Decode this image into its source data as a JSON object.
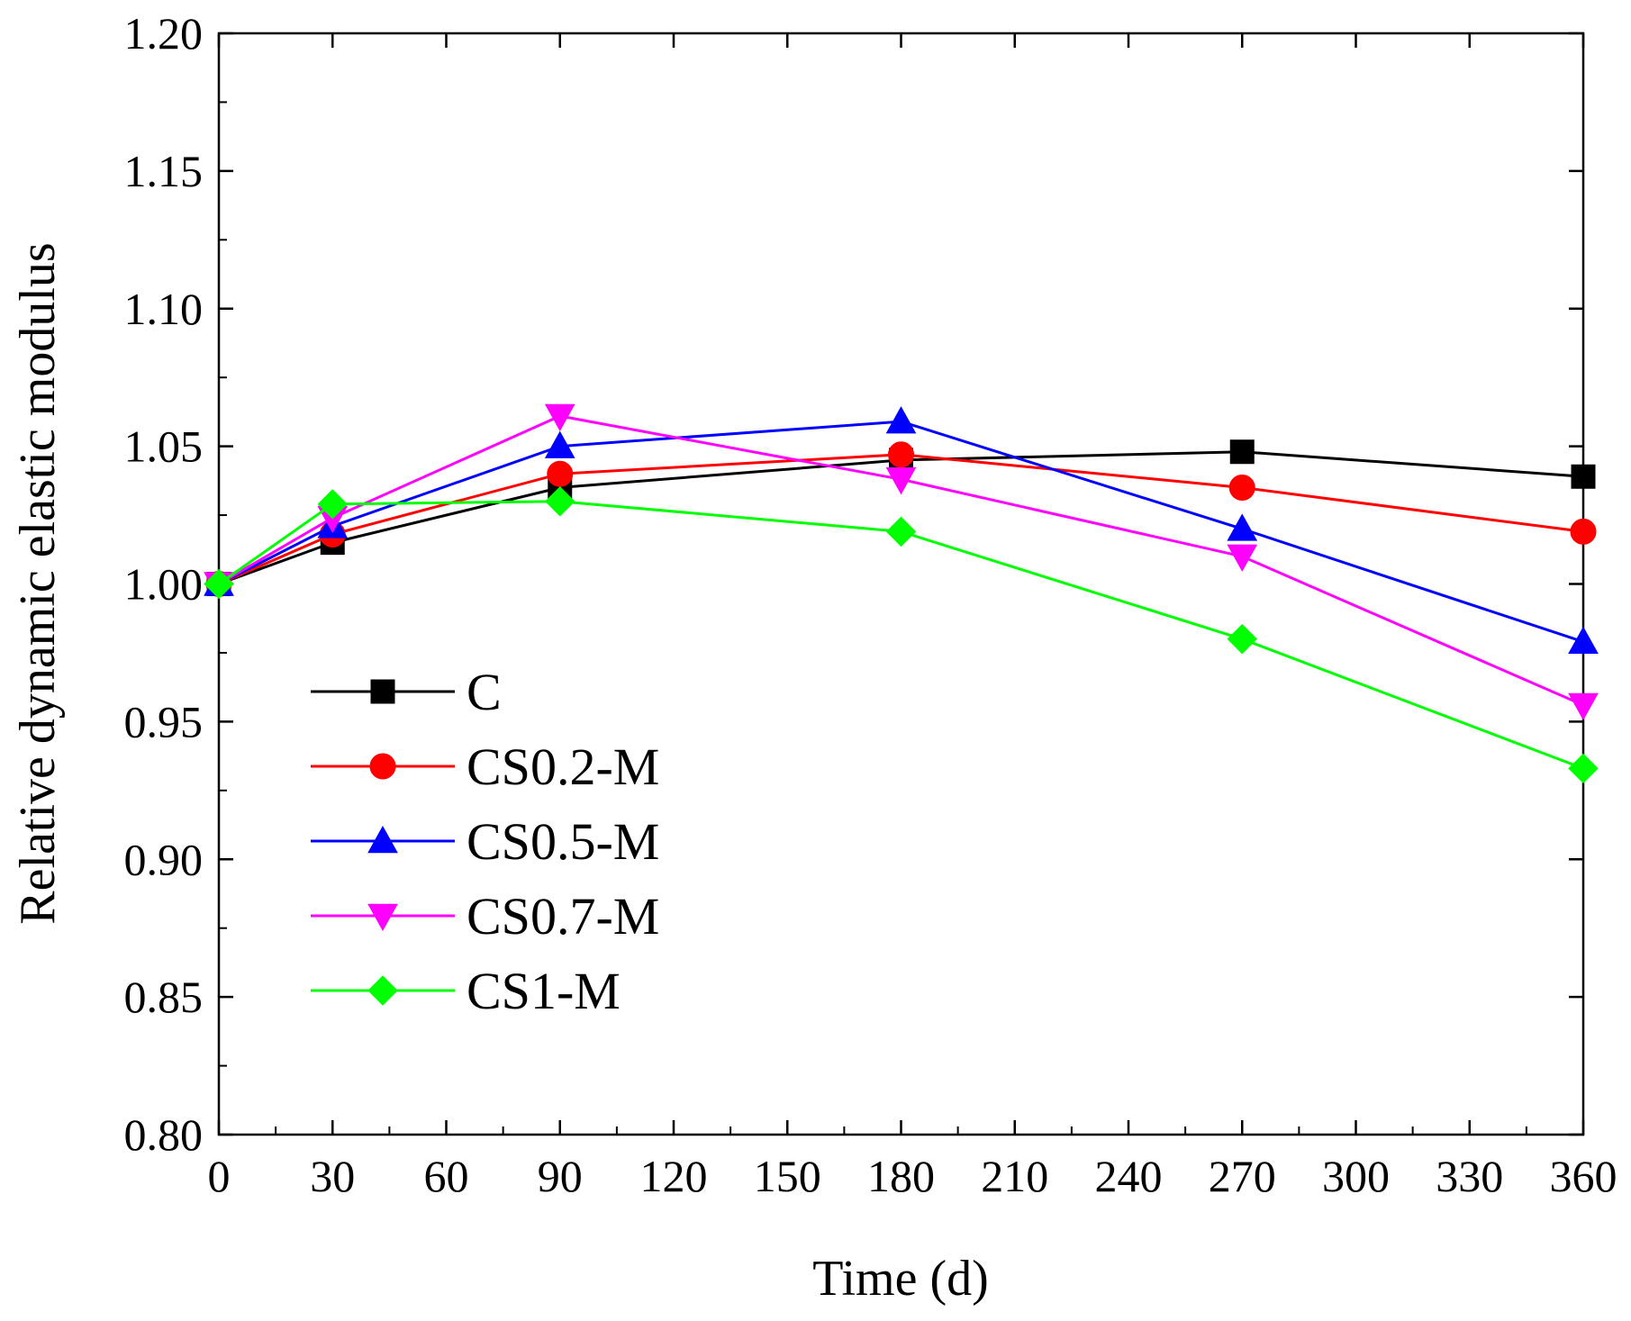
{
  "chart_data": {
    "type": "line",
    "title": "",
    "xlabel": "Time (d)",
    "ylabel": "Relative dynamic elastic modulus",
    "xlim": [
      0,
      360
    ],
    "ylim": [
      0.8,
      1.2
    ],
    "x_ticks": [
      0,
      30,
      60,
      90,
      120,
      150,
      180,
      210,
      240,
      270,
      300,
      330,
      360
    ],
    "x_tick_labels": [
      "0",
      "30",
      "60",
      "90",
      "120",
      "150",
      "180",
      "210",
      "240",
      "270",
      "300",
      "330",
      "360"
    ],
    "y_ticks": [
      0.8,
      0.85,
      0.9,
      0.95,
      1.0,
      1.05,
      1.1,
      1.15,
      1.2
    ],
    "y_tick_labels": [
      "0.80",
      "0.85",
      "0.90",
      "0.95",
      "1.00",
      "1.05",
      "1.10",
      "1.15",
      "1.20"
    ],
    "grid": false,
    "legend_position": "lower-left",
    "x": [
      0,
      30,
      90,
      180,
      270,
      360
    ],
    "series": [
      {
        "name": "C",
        "color": "#000000",
        "marker": "square",
        "values": [
          1.0,
          1.015,
          1.035,
          1.045,
          1.048,
          1.039
        ]
      },
      {
        "name": "CS0.2-M",
        "color": "#ff0000",
        "marker": "circle",
        "values": [
          1.0,
          1.018,
          1.04,
          1.047,
          1.035,
          1.019
        ]
      },
      {
        "name": "CS0.5-M",
        "color": "#0000ff",
        "marker": "triangle-up",
        "values": [
          1.0,
          1.021,
          1.05,
          1.059,
          1.02,
          0.979
        ]
      },
      {
        "name": "CS0.7-M",
        "color": "#ff00ff",
        "marker": "triangle-down",
        "values": [
          1.0,
          1.024,
          1.061,
          1.038,
          1.01,
          0.956
        ]
      },
      {
        "name": "CS1-M",
        "color": "#00ff00",
        "marker": "diamond",
        "values": [
          1.0,
          1.029,
          1.03,
          1.019,
          0.98,
          0.933
        ]
      }
    ]
  }
}
